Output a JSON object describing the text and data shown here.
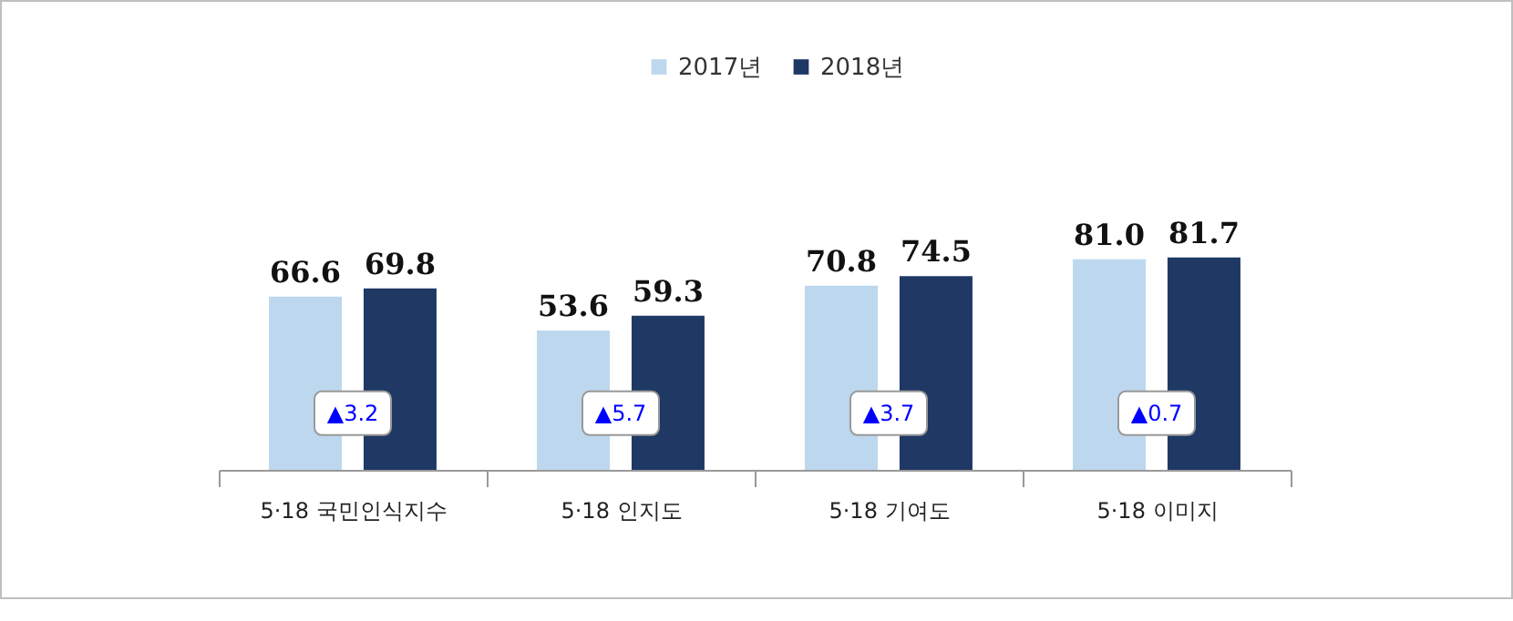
{
  "chart_data": {
    "type": "bar",
    "categories": [
      "5·18 국민인식지수",
      "5·18 인지도",
      "5·18 기여도",
      "5·18 이미지"
    ],
    "series": [
      {
        "name": "2017년",
        "color": "#bdd7ee",
        "values": [
          66.6,
          53.6,
          70.8,
          81.0
        ],
        "value_labels": [
          "66.6",
          "53.6",
          "70.8",
          "81.0"
        ]
      },
      {
        "name": "2018년",
        "color": "#1f3864",
        "values": [
          69.8,
          59.3,
          74.5,
          81.7
        ],
        "value_labels": [
          "69.8",
          "59.3",
          "74.5",
          "81.7"
        ]
      }
    ],
    "legend": "top",
    "grid": false,
    "annotations": [
      {
        "text": "▲3.2",
        "x": "5·18 국민인식지수"
      },
      {
        "text": "▲5.7",
        "x": "5·18 인지도"
      },
      {
        "text": "▲3.7",
        "x": "5·18 기여도"
      },
      {
        "text": "▲0.7",
        "x": "5·18 이미지"
      }
    ]
  }
}
